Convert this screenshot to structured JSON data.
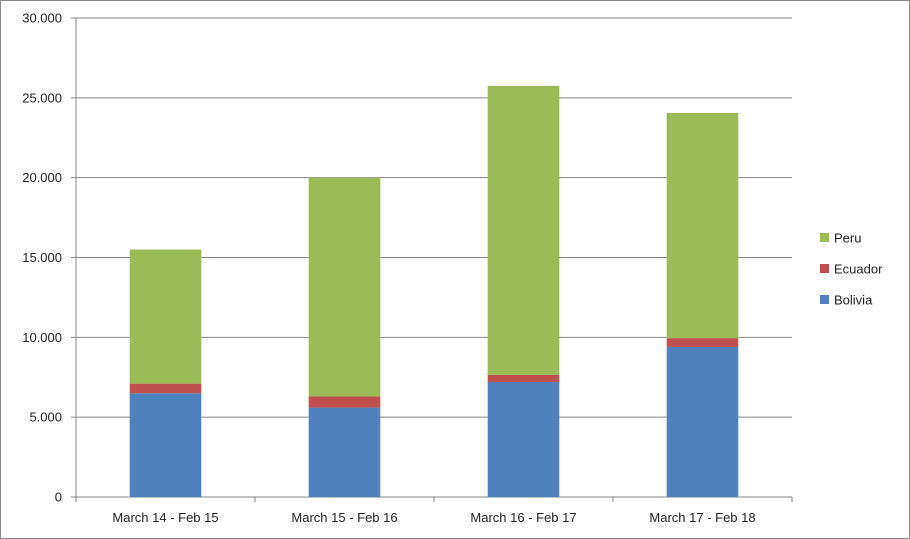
{
  "chart_data": {
    "type": "bar",
    "stacked": true,
    "title": "",
    "xlabel": "",
    "ylabel": "",
    "categories": [
      "March 14 - Feb 15",
      "March 15 - Feb 16",
      "March 16 - Feb 17",
      "March 17 - Feb 18"
    ],
    "series": [
      {
        "name": "Bolivia",
        "color": "#4f81bd",
        "values": [
          6500,
          5600,
          7200,
          9400
        ]
      },
      {
        "name": "Ecuador",
        "color": "#c0504d",
        "values": [
          600,
          700,
          450,
          550
        ]
      },
      {
        "name": "Peru",
        "color": "#9bbb59",
        "values": [
          8400,
          13700,
          18100,
          14100
        ]
      }
    ],
    "ylim": [
      0,
      30000
    ],
    "yticks": [
      0,
      5000,
      10000,
      15000,
      20000,
      25000,
      30000
    ],
    "ytick_labels": [
      "0",
      "5.000",
      "10.000",
      "15.000",
      "20.000",
      "25.000",
      "30.000"
    ],
    "grid": true,
    "legend_position": "right",
    "legend_order": [
      "Peru",
      "Ecuador",
      "Bolivia"
    ]
  }
}
